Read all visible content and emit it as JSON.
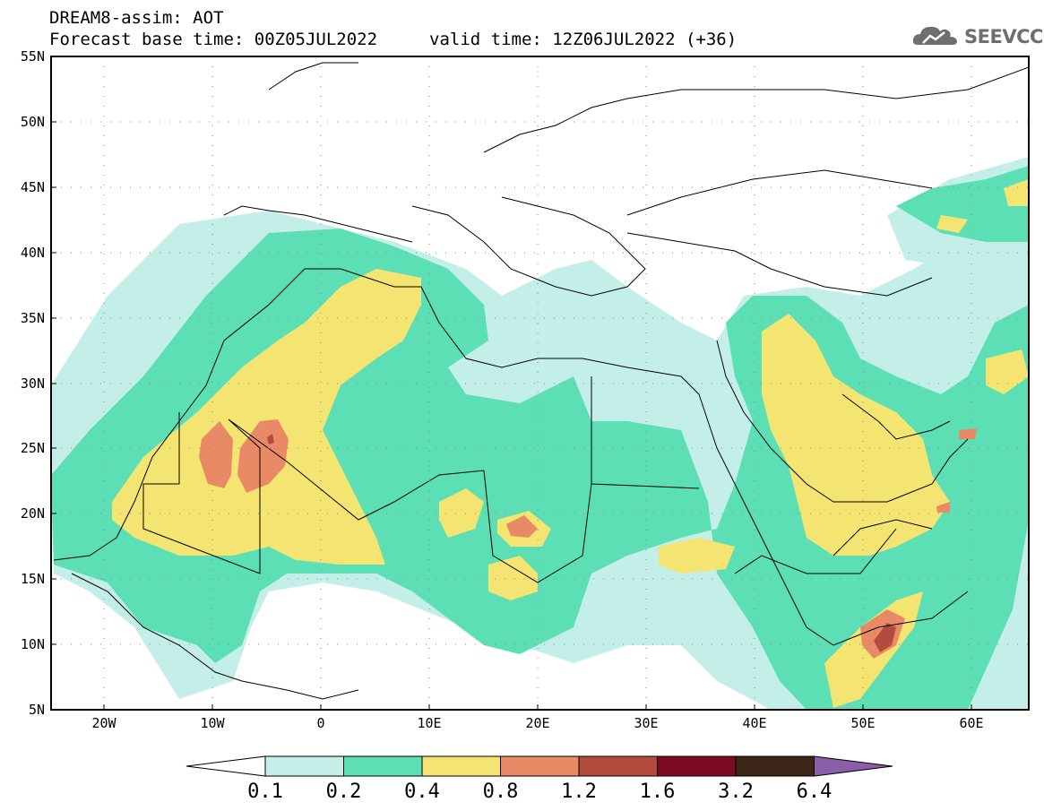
{
  "header": {
    "title": "DREAM8-assim: AOT",
    "base_time": "Forecast base time: 00Z05JUL2022",
    "valid_time": "valid time: 12Z06JUL2022 (+36)"
  },
  "logo": {
    "text": "SEEVCCC",
    "icon": "cloud-icon"
  },
  "map": {
    "lon_range": [
      -25,
      65
    ],
    "lat_range": [
      5,
      55
    ],
    "lat_ticks": [
      "55N",
      "50N",
      "45N",
      "40N",
      "35N",
      "30N",
      "25N",
      "20N",
      "15N",
      "10N",
      "5N"
    ],
    "lon_ticks": [
      "20W",
      "10W",
      "0",
      "10E",
      "20E",
      "30E",
      "40E",
      "50E",
      "60E"
    ]
  },
  "colorbar": {
    "labels": [
      "0.1",
      "0.2",
      "0.4",
      "0.8",
      "1.2",
      "1.6",
      "3.2",
      "6.4"
    ],
    "colors": [
      "#ffffff",
      "#c4eee8",
      "#5ddfb6",
      "#f4e472",
      "#e88a66",
      "#b34c3c",
      "#7a0b22",
      "#3c2416",
      "#8a5ea8"
    ]
  },
  "legend_colors": {
    "aot_0_1_0_2": "#c4eee8",
    "aot_0_2_0_4": "#5ddfb6",
    "aot_0_4_0_8": "#f4e472",
    "aot_0_8_1_2": "#e88a66",
    "aot_1_2_1_6": "#b34c3c"
  }
}
